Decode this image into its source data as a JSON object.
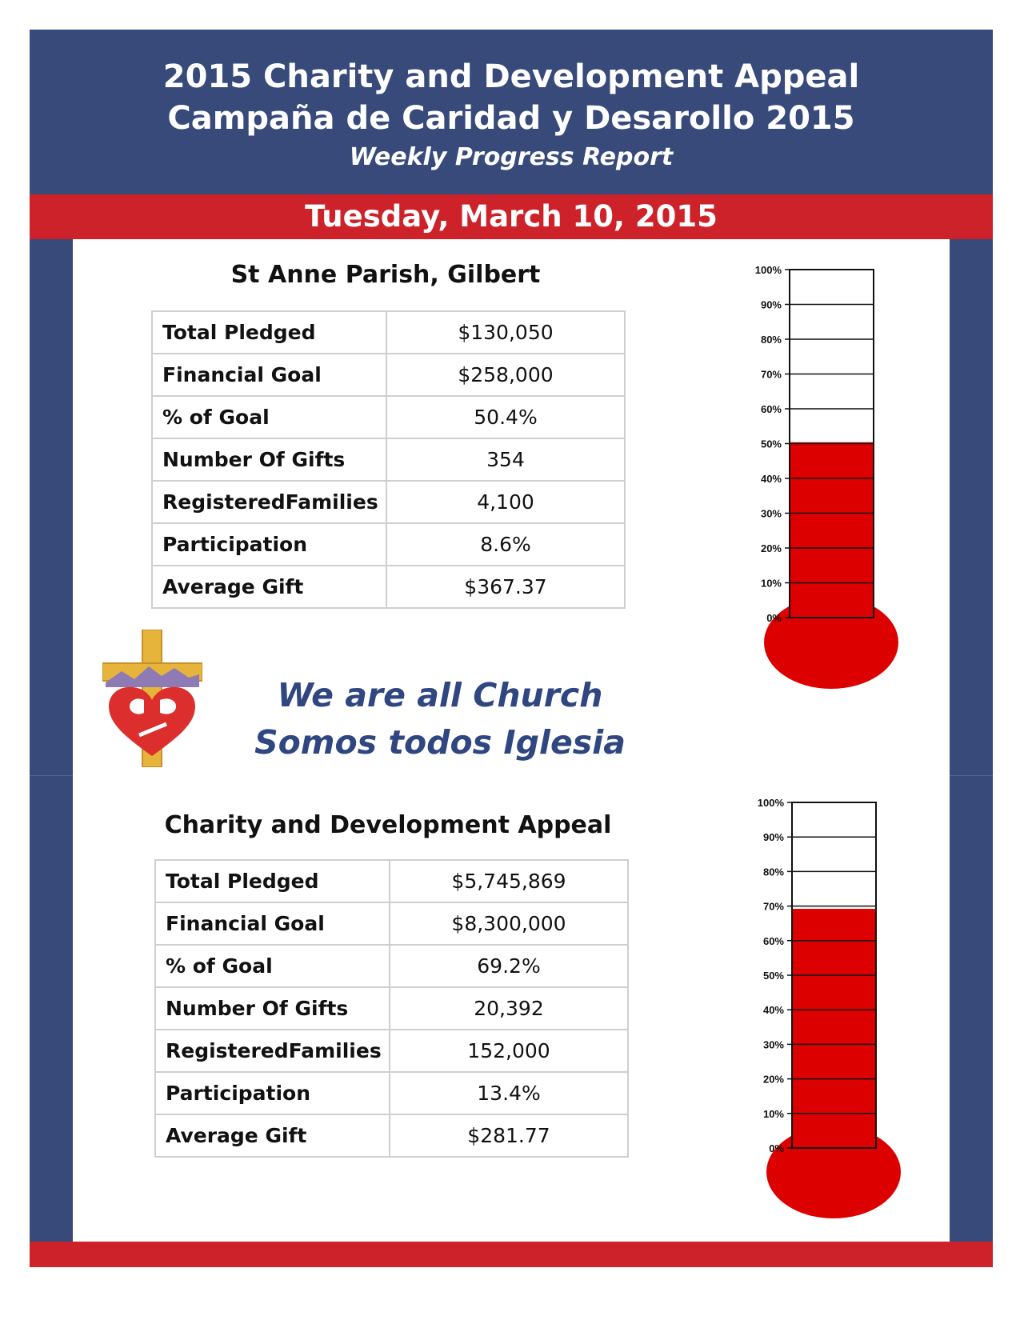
{
  "header": {
    "title_en": "2015 Charity and Development Appeal",
    "title_es": "Campaña de Caridad y Desarollo 2015",
    "subtitle": "Weekly Progress Report"
  },
  "date": "Tuesday, March 10, 2015",
  "parish": {
    "title": "St Anne Parish, Gilbert",
    "rows": [
      {
        "label": "Total Pledged",
        "value": "$130,050"
      },
      {
        "label": "Financial Goal",
        "value": "$258,000"
      },
      {
        "label": "% of Goal",
        "value": "50.4%"
      },
      {
        "label": "Number Of Gifts",
        "value": "354"
      },
      {
        "label": "RegisteredFamilies",
        "value": "4,100"
      },
      {
        "label": "Participation",
        "value": "8.6%"
      },
      {
        "label": "Average Gift",
        "value": "$367.37"
      }
    ]
  },
  "motto": {
    "en": "We are all Church",
    "es": "Somos todos Iglesia"
  },
  "appeal": {
    "title": "Charity and Development Appeal",
    "rows": [
      {
        "label": "Total Pledged",
        "value": "$5,745,869"
      },
      {
        "label": "Financial Goal",
        "value": "$8,300,000"
      },
      {
        "label": "% of Goal",
        "value": "69.2%"
      },
      {
        "label": "Number Of Gifts",
        "value": "20,392"
      },
      {
        "label": "RegisteredFamilies",
        "value": "152,000"
      },
      {
        "label": "Participation",
        "value": "13.4%"
      },
      {
        "label": "Average Gift",
        "value": "$281.77"
      }
    ]
  },
  "colors": {
    "navy": "#374a7a",
    "red_band": "#cd2229",
    "thermometer_fill": "#dd0000",
    "motto_text": "#2f4681"
  },
  "chart_data": [
    {
      "type": "bar",
      "title": "",
      "categories": [
        ""
      ],
      "values": [
        50.4
      ],
      "ylim": [
        0,
        100
      ],
      "yticks": [
        "0%",
        "10%",
        "20%",
        "30%",
        "40%",
        "50%",
        "60%",
        "70%",
        "80%",
        "90%",
        "100%"
      ],
      "grid": true
    },
    {
      "type": "bar",
      "title": "",
      "categories": [
        ""
      ],
      "values": [
        69.2
      ],
      "ylim": [
        0,
        100
      ],
      "yticks": [
        "0%",
        "10%",
        "20%",
        "30%",
        "40%",
        "50%",
        "60%",
        "70%",
        "80%",
        "90%",
        "100%"
      ],
      "grid": true
    }
  ]
}
